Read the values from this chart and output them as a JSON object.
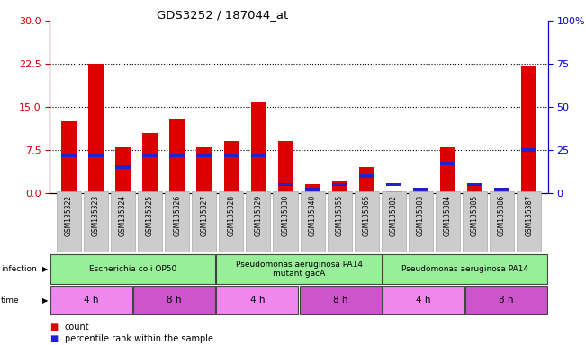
{
  "title": "GDS3252 / 187044_at",
  "samples": [
    "GSM135322",
    "GSM135323",
    "GSM135324",
    "GSM135325",
    "GSM135326",
    "GSM135327",
    "GSM135328",
    "GSM135329",
    "GSM135330",
    "GSM135340",
    "GSM135355",
    "GSM135365",
    "GSM135382",
    "GSM135383",
    "GSM135384",
    "GSM135385",
    "GSM135386",
    "GSM135387"
  ],
  "counts": [
    12.5,
    22.5,
    8.0,
    10.5,
    13.0,
    8.0,
    9.0,
    16.0,
    9.0,
    1.5,
    2.0,
    4.5,
    0.3,
    0.3,
    8.0,
    1.5,
    0.5,
    22.0
  ],
  "percentile_ranks": [
    22,
    22,
    15,
    22,
    22,
    22,
    22,
    22,
    5,
    2,
    5,
    10,
    5,
    2,
    17,
    5,
    2,
    25
  ],
  "ylim_left": [
    0,
    30
  ],
  "ylim_right": [
    0,
    100
  ],
  "yticks_left": [
    0,
    7.5,
    15,
    22.5,
    30
  ],
  "yticks_right": [
    0,
    25,
    50,
    75,
    100
  ],
  "bar_color": "#dd0000",
  "pct_color": "#2222cc",
  "bar_width": 0.55,
  "infection_groups": [
    {
      "label": "Escherichia coli OP50",
      "start": 0,
      "end": 6,
      "color": "#99ee99"
    },
    {
      "label": "Pseudomonas aeruginosa PA14\nmutant gacA",
      "start": 6,
      "end": 12,
      "color": "#99ee99"
    },
    {
      "label": "Pseudomonas aeruginosa PA14",
      "start": 12,
      "end": 18,
      "color": "#99ee99"
    }
  ],
  "time_groups": [
    {
      "label": "4 h",
      "start": 0,
      "end": 3,
      "color": "#ee88ee"
    },
    {
      "label": "8 h",
      "start": 3,
      "end": 6,
      "color": "#cc55cc"
    },
    {
      "label": "4 h",
      "start": 6,
      "end": 9,
      "color": "#ee88ee"
    },
    {
      "label": "8 h",
      "start": 9,
      "end": 12,
      "color": "#cc55cc"
    },
    {
      "label": "4 h",
      "start": 12,
      "end": 15,
      "color": "#ee88ee"
    },
    {
      "label": "8 h",
      "start": 15,
      "end": 18,
      "color": "#cc55cc"
    }
  ],
  "legend_count_label": "count",
  "legend_pct_label": "percentile rank within the sample",
  "left_axis_color": "#cc0000",
  "right_axis_color": "#0000cc",
  "bg_color": "#ffffff",
  "bar_area_bg": "#ffffff",
  "xtick_bg": "#cccccc",
  "dotted_line_color": "#000000"
}
